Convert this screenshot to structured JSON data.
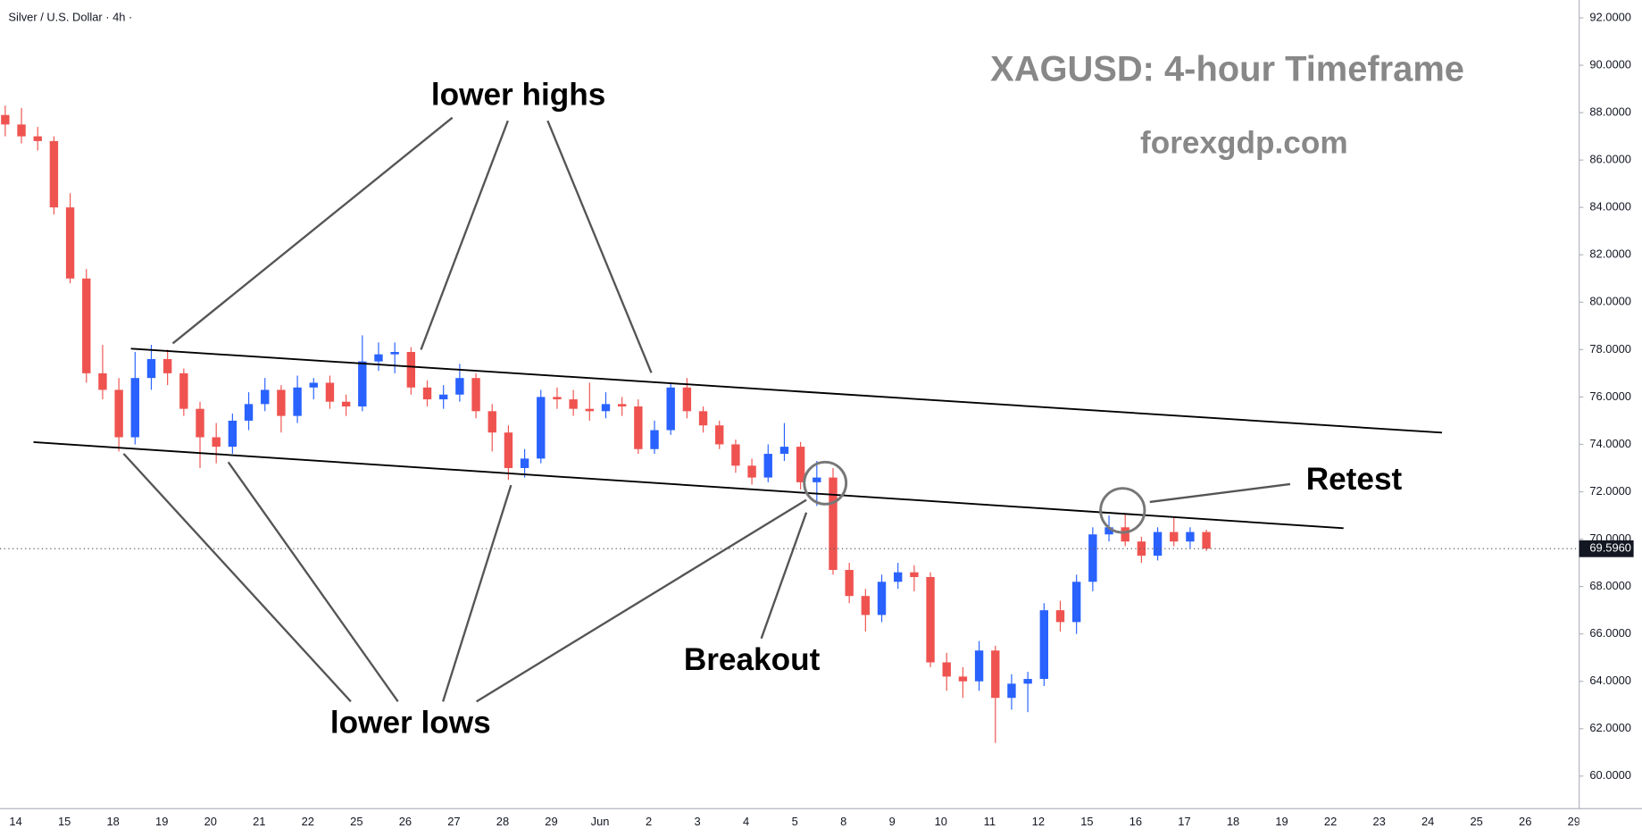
{
  "chart_data": {
    "type": "candlestick",
    "symbol": "Silver / U.S. Dollar · 4h ·",
    "title": "XAGUSD: 4-hour Timeframe",
    "subtitle": "forexgdp.com",
    "annotations": {
      "highs": "lower highs",
      "lows": "lower lows",
      "breakout": "Breakout",
      "retest": "Retest"
    },
    "up_color": "#2962ff",
    "down_color": "#ef5350",
    "ylim": [
      60,
      92
    ],
    "yticks": [
      {
        "value": 60,
        "label": "60.0000"
      },
      {
        "value": 62,
        "label": "62.0000"
      },
      {
        "value": 64,
        "label": "64.0000"
      },
      {
        "value": 66,
        "label": "66.0000"
      },
      {
        "value": 68,
        "label": "68.0000"
      },
      {
        "value": 70,
        "label": "70.0000"
      },
      {
        "value": 72,
        "label": "72.0000"
      },
      {
        "value": 74,
        "label": "74.0000"
      },
      {
        "value": 76,
        "label": "76.0000"
      },
      {
        "value": 78,
        "label": "78.0000"
      },
      {
        "value": 80,
        "label": "80.0000"
      },
      {
        "value": 82,
        "label": "82.0000"
      },
      {
        "value": 84,
        "label": "84.0000"
      },
      {
        "value": 86,
        "label": "86.0000"
      },
      {
        "value": 88,
        "label": "88.0000"
      },
      {
        "value": 90,
        "label": "90.0000"
      },
      {
        "value": 92,
        "label": "92.0000"
      }
    ],
    "x_labels": [
      "14",
      "15",
      "18",
      "19",
      "20",
      "21",
      "22",
      "25",
      "26",
      "27",
      "28",
      "29",
      "Jun",
      "2",
      "3",
      "4",
      "5",
      "8",
      "9",
      "10",
      "11",
      "12",
      "15",
      "16",
      "17",
      "18",
      "19",
      "22",
      "23",
      "24",
      "25",
      "26",
      "29"
    ],
    "last_price": {
      "value": 69.596,
      "label": "69.5960"
    },
    "candles": [
      [
        87.9,
        88.3,
        87.0,
        87.5
      ],
      [
        87.5,
        88.2,
        86.7,
        87.0
      ],
      [
        87.0,
        87.4,
        86.4,
        86.8
      ],
      [
        86.8,
        87.0,
        83.7,
        84.0
      ],
      [
        84.0,
        84.6,
        80.8,
        81.0
      ],
      [
        81.0,
        81.4,
        76.6,
        77.0
      ],
      [
        77.0,
        78.2,
        75.9,
        76.3
      ],
      [
        76.3,
        76.8,
        73.7,
        74.3
      ],
      [
        74.3,
        77.9,
        74.0,
        76.8
      ],
      [
        76.8,
        78.2,
        76.3,
        77.6
      ],
      [
        77.6,
        78.0,
        76.5,
        77.0
      ],
      [
        77.0,
        77.2,
        75.2,
        75.5
      ],
      [
        75.5,
        75.8,
        73.0,
        74.3
      ],
      [
        74.3,
        74.9,
        73.2,
        73.9
      ],
      [
        73.9,
        75.3,
        73.6,
        75.0
      ],
      [
        75.0,
        76.2,
        74.6,
        75.7
      ],
      [
        75.7,
        76.8,
        75.4,
        76.3
      ],
      [
        76.3,
        76.5,
        74.5,
        75.2
      ],
      [
        75.2,
        76.9,
        74.9,
        76.4
      ],
      [
        76.4,
        76.8,
        75.9,
        76.6
      ],
      [
        76.6,
        76.9,
        75.5,
        75.8
      ],
      [
        75.8,
        76.1,
        75.2,
        75.6
      ],
      [
        75.6,
        78.6,
        75.4,
        77.5
      ],
      [
        77.5,
        78.3,
        77.1,
        77.8
      ],
      [
        77.8,
        78.3,
        77.0,
        77.9
      ],
      [
        77.9,
        78.1,
        76.1,
        76.4
      ],
      [
        76.4,
        76.7,
        75.6,
        75.9
      ],
      [
        75.9,
        76.5,
        75.5,
        76.1
      ],
      [
        76.1,
        77.4,
        75.8,
        76.8
      ],
      [
        76.8,
        77.0,
        75.1,
        75.4
      ],
      [
        75.4,
        75.7,
        73.7,
        74.5
      ],
      [
        74.5,
        74.8,
        72.5,
        73.0
      ],
      [
        73.0,
        73.8,
        72.6,
        73.4
      ],
      [
        73.4,
        76.3,
        73.2,
        76.0
      ],
      [
        76.0,
        76.4,
        75.5,
        75.9
      ],
      [
        75.9,
        76.3,
        75.2,
        75.5
      ],
      [
        75.5,
        76.6,
        75.0,
        75.4
      ],
      [
        75.4,
        76.2,
        75.1,
        75.7
      ],
      [
        75.7,
        76.0,
        75.2,
        75.6
      ],
      [
        75.6,
        75.9,
        73.6,
        73.8
      ],
      [
        73.8,
        75.0,
        73.6,
        74.6
      ],
      [
        74.6,
        76.6,
        74.4,
        76.4
      ],
      [
        76.4,
        76.8,
        75.1,
        75.4
      ],
      [
        75.4,
        75.6,
        74.5,
        74.8
      ],
      [
        74.8,
        75.0,
        73.8,
        74.0
      ],
      [
        74.0,
        74.2,
        72.8,
        73.1
      ],
      [
        73.1,
        73.4,
        72.3,
        72.6
      ],
      [
        72.6,
        74.0,
        72.4,
        73.6
      ],
      [
        73.6,
        74.9,
        73.3,
        73.9
      ],
      [
        73.9,
        74.1,
        72.1,
        72.4
      ],
      [
        72.4,
        73.3,
        71.4,
        72.6
      ],
      [
        72.6,
        73.0,
        68.5,
        68.7
      ],
      [
        68.7,
        69.0,
        67.3,
        67.6
      ],
      [
        67.6,
        67.9,
        66.1,
        66.8
      ],
      [
        66.8,
        68.5,
        66.5,
        68.2
      ],
      [
        68.2,
        69.0,
        67.9,
        68.6
      ],
      [
        68.6,
        68.9,
        67.8,
        68.4
      ],
      [
        68.4,
        68.6,
        64.6,
        64.8
      ],
      [
        64.8,
        65.2,
        63.6,
        64.2
      ],
      [
        64.2,
        64.6,
        63.3,
        64.0
      ],
      [
        64.0,
        65.7,
        63.6,
        65.3
      ],
      [
        65.3,
        65.5,
        61.4,
        63.3
      ],
      [
        63.3,
        64.3,
        62.8,
        63.9
      ],
      [
        63.9,
        64.4,
        62.7,
        64.1
      ],
      [
        64.1,
        67.3,
        63.8,
        67.0
      ],
      [
        67.0,
        67.4,
        66.1,
        66.5
      ],
      [
        66.5,
        68.5,
        66.0,
        68.2
      ],
      [
        68.2,
        70.5,
        67.8,
        70.2
      ],
      [
        70.2,
        71.0,
        69.9,
        70.5
      ],
      [
        70.5,
        71.1,
        69.7,
        69.9
      ],
      [
        69.9,
        70.1,
        69.0,
        69.3
      ],
      [
        69.3,
        70.5,
        69.1,
        70.3
      ],
      [
        70.3,
        70.9,
        69.7,
        69.9
      ],
      [
        69.9,
        70.5,
        69.6,
        70.3
      ],
      [
        70.3,
        70.4,
        69.5,
        69.6
      ]
    ]
  }
}
